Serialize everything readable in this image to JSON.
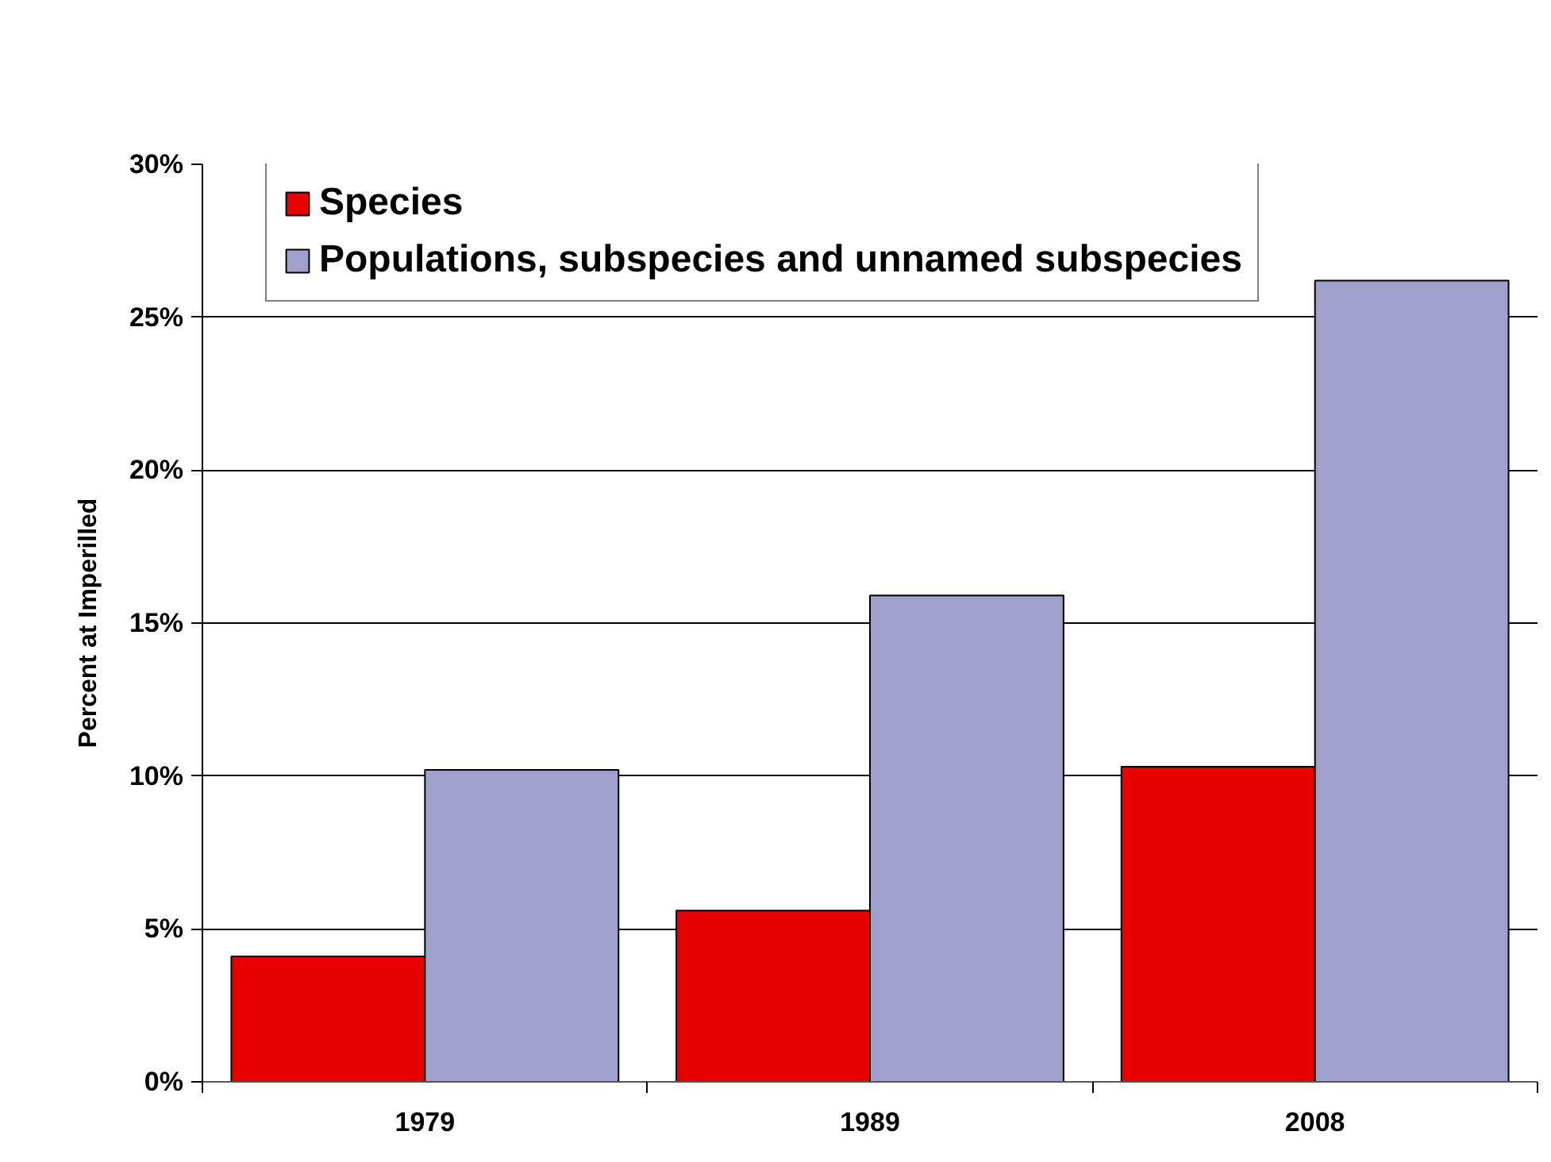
{
  "chart_data": {
    "type": "bar",
    "ylabel": "Percent at Imperilled",
    "categories": [
      "1979",
      "1989",
      "2008"
    ],
    "series": [
      {
        "name": "Species",
        "color": "#e60000",
        "values": [
          4.1,
          5.6,
          10.3
        ]
      },
      {
        "name": "Populations, subspecies and unnamed subspecies",
        "color": "#9fa1cc",
        "values": [
          10.2,
          15.9,
          26.2
        ]
      }
    ],
    "ylim": [
      0,
      30
    ],
    "yticks": [
      {
        "value": 0,
        "label": "0%"
      },
      {
        "value": 5,
        "label": "5%"
      },
      {
        "value": 10,
        "label": "10%"
      },
      {
        "value": 15,
        "label": "15%"
      },
      {
        "value": 20,
        "label": "20%"
      },
      {
        "value": 25,
        "label": "25%"
      },
      {
        "value": 30,
        "label": "30%"
      }
    ],
    "grid": "y",
    "legend": "top"
  }
}
